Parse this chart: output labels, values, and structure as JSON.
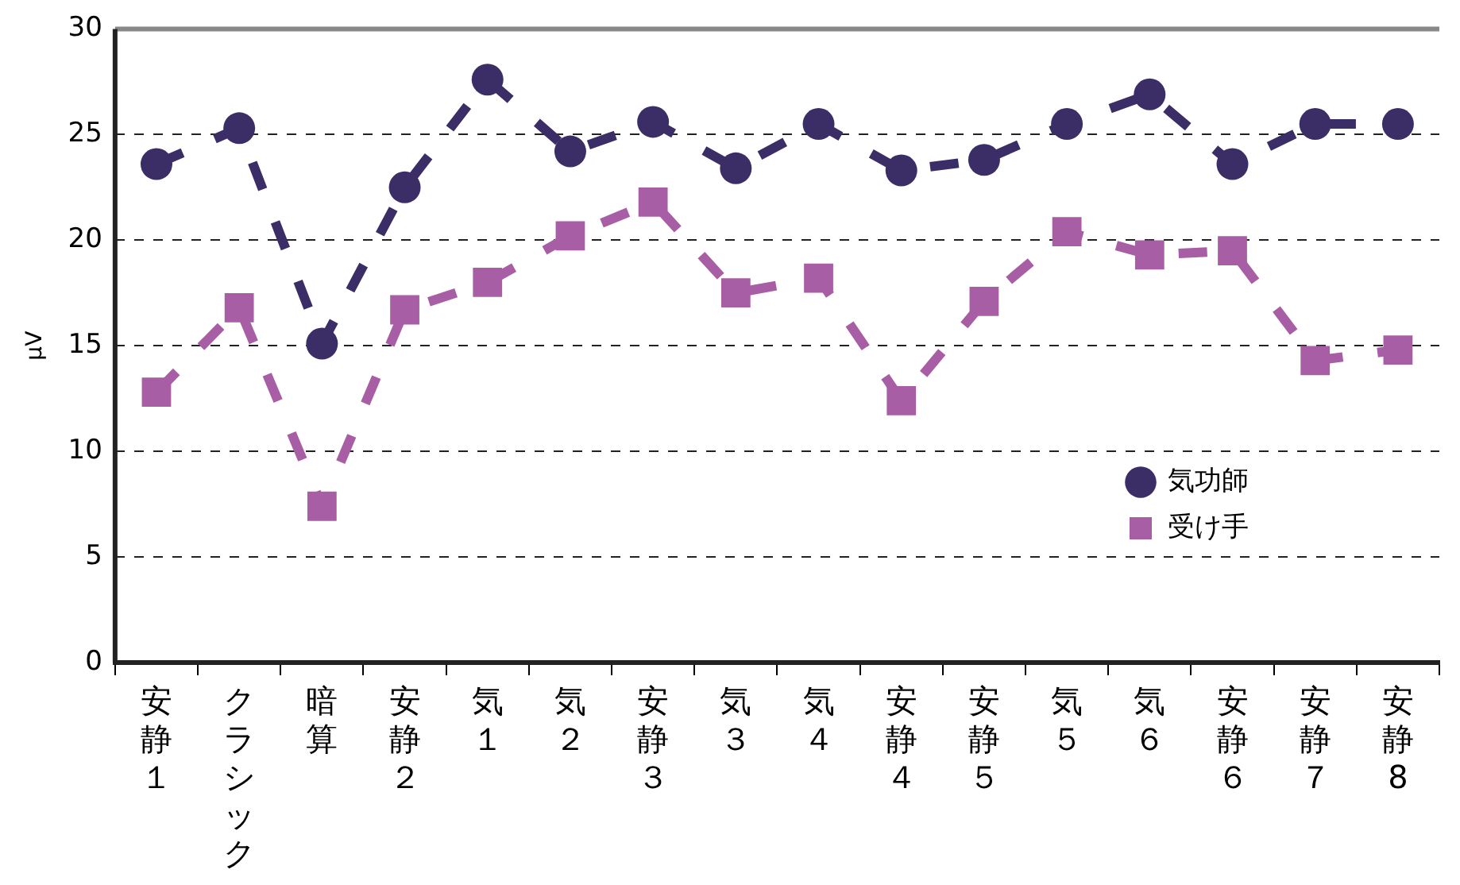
{
  "chart_data": {
    "type": "line",
    "ylabel": "μV",
    "categories": [
      "安静１",
      "クラシック",
      "暗算",
      "安静２",
      "気１",
      "気２",
      "安静３",
      "気３",
      "気４",
      "安静４",
      "安静５",
      "気５",
      "気６",
      "安静６",
      "安静７",
      "安静8"
    ],
    "series": [
      {
        "name": "気功師",
        "color": "#3b2e66",
        "marker": "circle",
        "values": [
          23.6,
          25.3,
          15.1,
          22.5,
          27.6,
          24.2,
          25.6,
          23.4,
          25.5,
          23.3,
          23.8,
          25.5,
          26.9,
          23.6,
          25.5,
          25.5
        ]
      },
      {
        "name": "受け手",
        "color": "#a85ea5",
        "marker": "square",
        "values": [
          12.8,
          16.8,
          7.4,
          16.7,
          18.0,
          20.2,
          21.8,
          17.5,
          18.2,
          12.4,
          17.1,
          20.4,
          19.3,
          19.5,
          14.3,
          14.8
        ]
      }
    ],
    "ylim": [
      0,
      30
    ],
    "yticks": [
      0,
      5,
      10,
      15,
      20,
      25,
      30
    ],
    "grid": "y",
    "legend": "bottom right",
    "line_style": "dashed"
  }
}
